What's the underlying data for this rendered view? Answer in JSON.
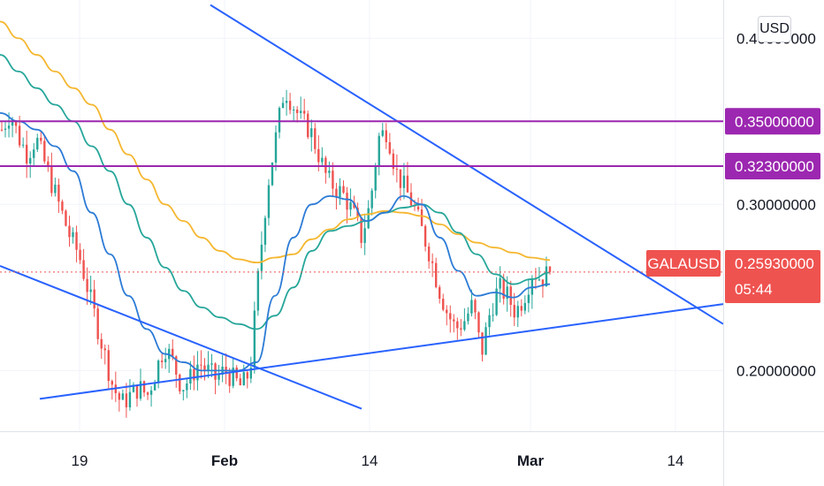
{
  "chart_data": {
    "type": "candlestick",
    "symbol": "GALAUSD",
    "currency": "USD",
    "current_price": 0.2593,
    "countdown": "05:44",
    "x_ticks": [
      "19",
      "Feb",
      "14",
      "Mar",
      "14"
    ],
    "y_ticks": [
      "0.40000000",
      "0.30000000",
      "0.20000000"
    ],
    "ylim": [
      0.1635,
      0.423
    ],
    "horizontal_levels": [
      {
        "label": "0.35000000",
        "value": 0.35
      },
      {
        "label": "0.32300000",
        "value": 0.323
      }
    ],
    "price_path": [
      0.345,
      0.355,
      0.34,
      0.33,
      0.34,
      0.325,
      0.31,
      0.295,
      0.28,
      0.27,
      0.25,
      0.23,
      0.21,
      0.19,
      0.18,
      0.185,
      0.19,
      0.185,
      0.2,
      0.215,
      0.205,
      0.19,
      0.195,
      0.205,
      0.2,
      0.195,
      0.2,
      0.195,
      0.19,
      0.2,
      0.26,
      0.31,
      0.34,
      0.37,
      0.36,
      0.35,
      0.345,
      0.33,
      0.315,
      0.31,
      0.305,
      0.295,
      0.28,
      0.3,
      0.34,
      0.345,
      0.32,
      0.31,
      0.3,
      0.285,
      0.27,
      0.25,
      0.235,
      0.225,
      0.23,
      0.24,
      0.21,
      0.235,
      0.25,
      0.245,
      0.235,
      0.245,
      0.26,
      0.255,
      0.2593
    ],
    "moving_averages": [
      {
        "color": "#f5b730",
        "values": [
          0.41,
          0.4,
          0.39,
          0.38,
          0.37,
          0.36,
          0.345,
          0.33,
          0.315,
          0.3,
          0.29,
          0.28,
          0.272,
          0.267,
          0.265,
          0.268,
          0.27,
          0.279,
          0.285,
          0.291,
          0.294,
          0.296,
          0.295,
          0.293,
          0.288,
          0.282,
          0.277,
          0.274,
          0.271,
          0.268,
          0.2665
        ]
      },
      {
        "color": "#26a69a",
        "values": [
          0.39,
          0.38,
          0.37,
          0.36,
          0.35,
          0.335,
          0.32,
          0.3,
          0.28,
          0.262,
          0.248,
          0.238,
          0.232,
          0.228,
          0.225,
          0.233,
          0.25,
          0.272,
          0.284,
          0.287,
          0.29,
          0.295,
          0.298,
          0.3,
          0.295,
          0.283,
          0.27,
          0.258,
          0.252,
          0.255,
          0.259
        ]
      },
      {
        "color": "#2c7bd6",
        "values": [
          0.355,
          0.35,
          0.345,
          0.335,
          0.32,
          0.295,
          0.27,
          0.245,
          0.225,
          0.21,
          0.205,
          0.2,
          0.2,
          0.2,
          0.205,
          0.245,
          0.28,
          0.3,
          0.305,
          0.303,
          0.29,
          0.295,
          0.305,
          0.3,
          0.28,
          0.26,
          0.245,
          0.247,
          0.244,
          0.25,
          0.252
        ]
      }
    ],
    "trendlines": [
      {
        "name": "descending-upper",
        "color": "#2962ff"
      },
      {
        "name": "descending-lower",
        "color": "#2962ff"
      },
      {
        "name": "ascending-support",
        "color": "#2962ff"
      }
    ],
    "colors": {
      "up": "#26a69a",
      "down": "#ef5350",
      "level": "#9c27b0",
      "price": "#ef5350"
    }
  }
}
